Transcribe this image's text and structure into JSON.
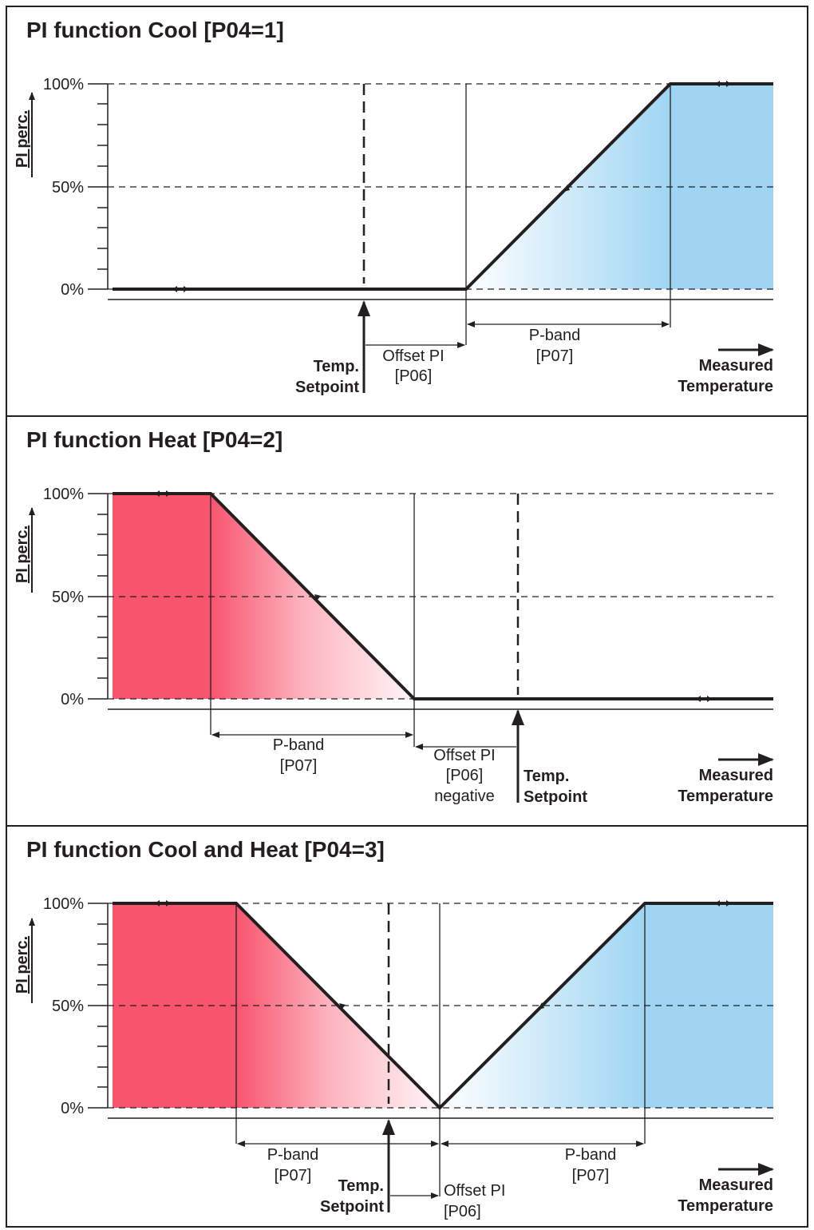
{
  "colors": {
    "cool": "#9fd5f3",
    "heat": "#f9546e",
    "line": "#231f20",
    "border": "#231f20"
  },
  "panels": [
    {
      "title": "PI function Cool [P04=1]",
      "ylabel": "PI perc.",
      "yticks": [
        "100%",
        "50%",
        "0%"
      ],
      "setpoint": [
        "Temp.",
        "Setpoint"
      ],
      "offset": [
        "Offset PI",
        "[P06]"
      ],
      "pband": [
        [
          "P-band",
          "[P07]"
        ]
      ],
      "measured": [
        "Measured",
        "Temperature"
      ]
    },
    {
      "title": "PI function Heat [P04=2]",
      "ylabel": "PI perc.",
      "yticks": [
        "100%",
        "50%",
        "0%"
      ],
      "setpoint": [
        "Temp.",
        "Setpoint"
      ],
      "offset": [
        "Offset PI",
        "[P06]",
        "negative"
      ],
      "pband": [
        [
          "P-band",
          "[P07]"
        ]
      ],
      "measured": [
        "Measured",
        "Temperature"
      ]
    },
    {
      "title": "PI function Cool and Heat [P04=3]",
      "ylabel": "PI perc.",
      "yticks": [
        "100%",
        "50%",
        "0%"
      ],
      "setpoint": [
        "Temp.",
        "Setpoint"
      ],
      "offset": [
        "Offset PI",
        "[P06]"
      ],
      "pband": [
        [
          "P-band",
          "[P07]"
        ],
        [
          "P-band",
          "[P07]"
        ]
      ],
      "measured": [
        "Measured",
        "Temperature"
      ]
    }
  ]
}
